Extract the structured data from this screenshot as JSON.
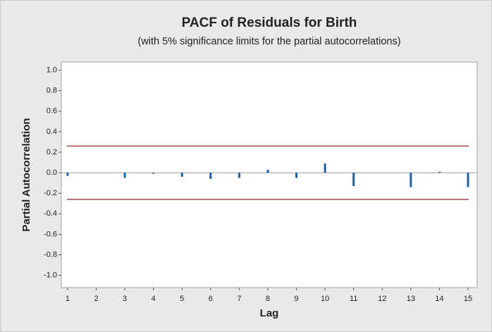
{
  "chart_data": {
    "type": "bar",
    "title": "PACF of Residuals for Birth",
    "subtitle": "(with 5% significance limits for the partial autocorrelations)",
    "x_label": "Lag",
    "y_label": "Partial Autocorrelation",
    "x": [
      1,
      2,
      3,
      4,
      5,
      6,
      7,
      8,
      9,
      10,
      11,
      12,
      13,
      14,
      15
    ],
    "values": [
      -0.03,
      0.0,
      -0.05,
      -0.01,
      -0.04,
      -0.06,
      -0.05,
      0.03,
      -0.05,
      0.09,
      -0.13,
      0.0,
      -0.14,
      0.01,
      -0.14
    ],
    "color": "#1f5fa8",
    "significance_limits": [
      0.26,
      -0.26
    ],
    "limit_color": "#a84a4a",
    "xlim": [
      0.78,
      15.32
    ],
    "xticks": [
      1,
      2,
      3,
      4,
      5,
      6,
      7,
      8,
      9,
      10,
      11,
      12,
      13,
      14,
      15
    ],
    "ylim": [
      -1.12,
      1.08
    ],
    "yticks": [
      {
        "value": 1,
        "label": "1.0"
      },
      0.8,
      0.6,
      0.4,
      0.2,
      {
        "value": 0,
        "label": "0.0"
      },
      -0.2,
      -0.4,
      -0.6,
      -0.8,
      {
        "value": -1,
        "label": "-1.0"
      }
    ]
  }
}
